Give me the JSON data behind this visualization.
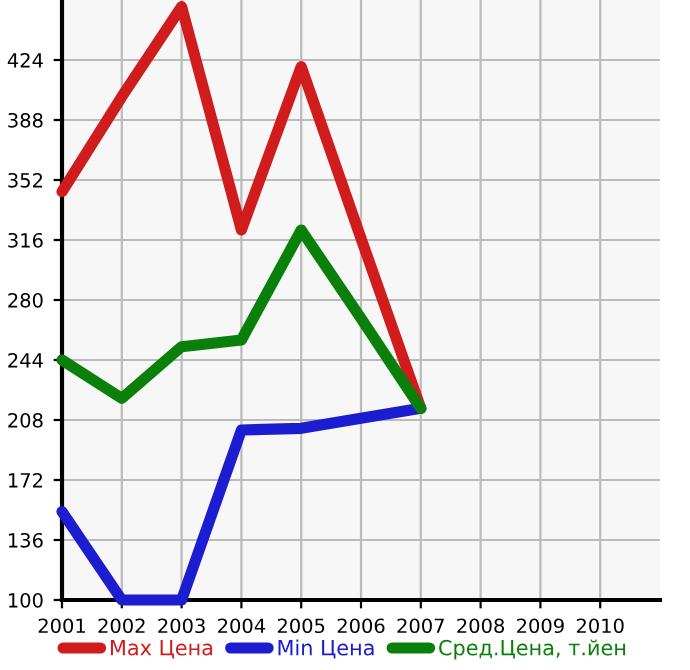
{
  "chart_data": {
    "type": "line",
    "x": [
      2001,
      2002,
      2003,
      2004,
      2005,
      2006,
      2007
    ],
    "series": [
      {
        "name": "Max Цена",
        "color": "#d01c1c",
        "values": [
          345,
          402,
          456,
          322,
          420,
          317,
          215
        ]
      },
      {
        "name": "Min Цена",
        "color": "#1c1cd0",
        "values": [
          153,
          100,
          100,
          202,
          203,
          209,
          215
        ]
      },
      {
        "name": "Сред.Цена, т.йен",
        "color": "#0a800a",
        "values": [
          244,
          221,
          252,
          256,
          322,
          269,
          215
        ]
      }
    ],
    "xlim": [
      2001,
      2011
    ],
    "xticks": [
      2001,
      2002,
      2003,
      2004,
      2005,
      2006,
      2007,
      2008,
      2009,
      2010
    ],
    "ylim": [
      100,
      460
    ],
    "yticks": [
      100,
      136,
      172,
      208,
      244,
      280,
      316,
      352,
      388,
      424
    ],
    "grid": true,
    "legend": "bottom",
    "marker": "none",
    "line_style": "solid"
  }
}
